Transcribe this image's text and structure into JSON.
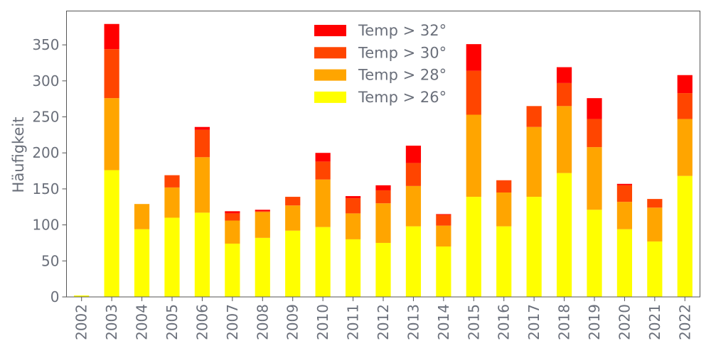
{
  "chart_data": {
    "type": "bar",
    "stacked": true,
    "title": "",
    "xlabel": "",
    "ylabel": "Häufigkeit",
    "ylim": [
      0,
      397
    ],
    "yticks": [
      0,
      50,
      100,
      150,
      200,
      250,
      300,
      350
    ],
    "grid": false,
    "legend_position": "top-center",
    "categories": [
      "2002",
      "2003",
      "2004",
      "2005",
      "2006",
      "2007",
      "2008",
      "2009",
      "2010",
      "2011",
      "2012",
      "2013",
      "2014",
      "2015",
      "2016",
      "2017",
      "2018",
      "2019",
      "2020",
      "2021",
      "2022"
    ],
    "series": [
      {
        "name": "Temp > 26°",
        "color": "#ffff00",
        "values": [
          2,
          176,
          94,
          110,
          117,
          74,
          82,
          92,
          97,
          80,
          75,
          98,
          70,
          139,
          98,
          139,
          172,
          121,
          94,
          77,
          168
        ]
      },
      {
        "name": "Temp > 28°",
        "color": "#ffa500",
        "values": [
          0,
          100,
          35,
          42,
          77,
          32,
          36,
          35,
          66,
          36,
          55,
          56,
          29,
          114,
          47,
          97,
          93,
          87,
          38,
          47,
          79
        ]
      },
      {
        "name": "Temp > 30°",
        "color": "#ff4500",
        "values": [
          0,
          68,
          0,
          17,
          38,
          10,
          1,
          12,
          25,
          21,
          18,
          32,
          15,
          61,
          17,
          29,
          32,
          39,
          23,
          12,
          36
        ]
      },
      {
        "name": "Temp > 32°",
        "color": "#ff0000",
        "values": [
          0,
          35,
          0,
          0,
          4,
          3,
          2,
          0,
          12,
          3,
          7,
          24,
          1,
          37,
          0,
          0,
          22,
          29,
          2,
          0,
          25
        ]
      }
    ]
  }
}
